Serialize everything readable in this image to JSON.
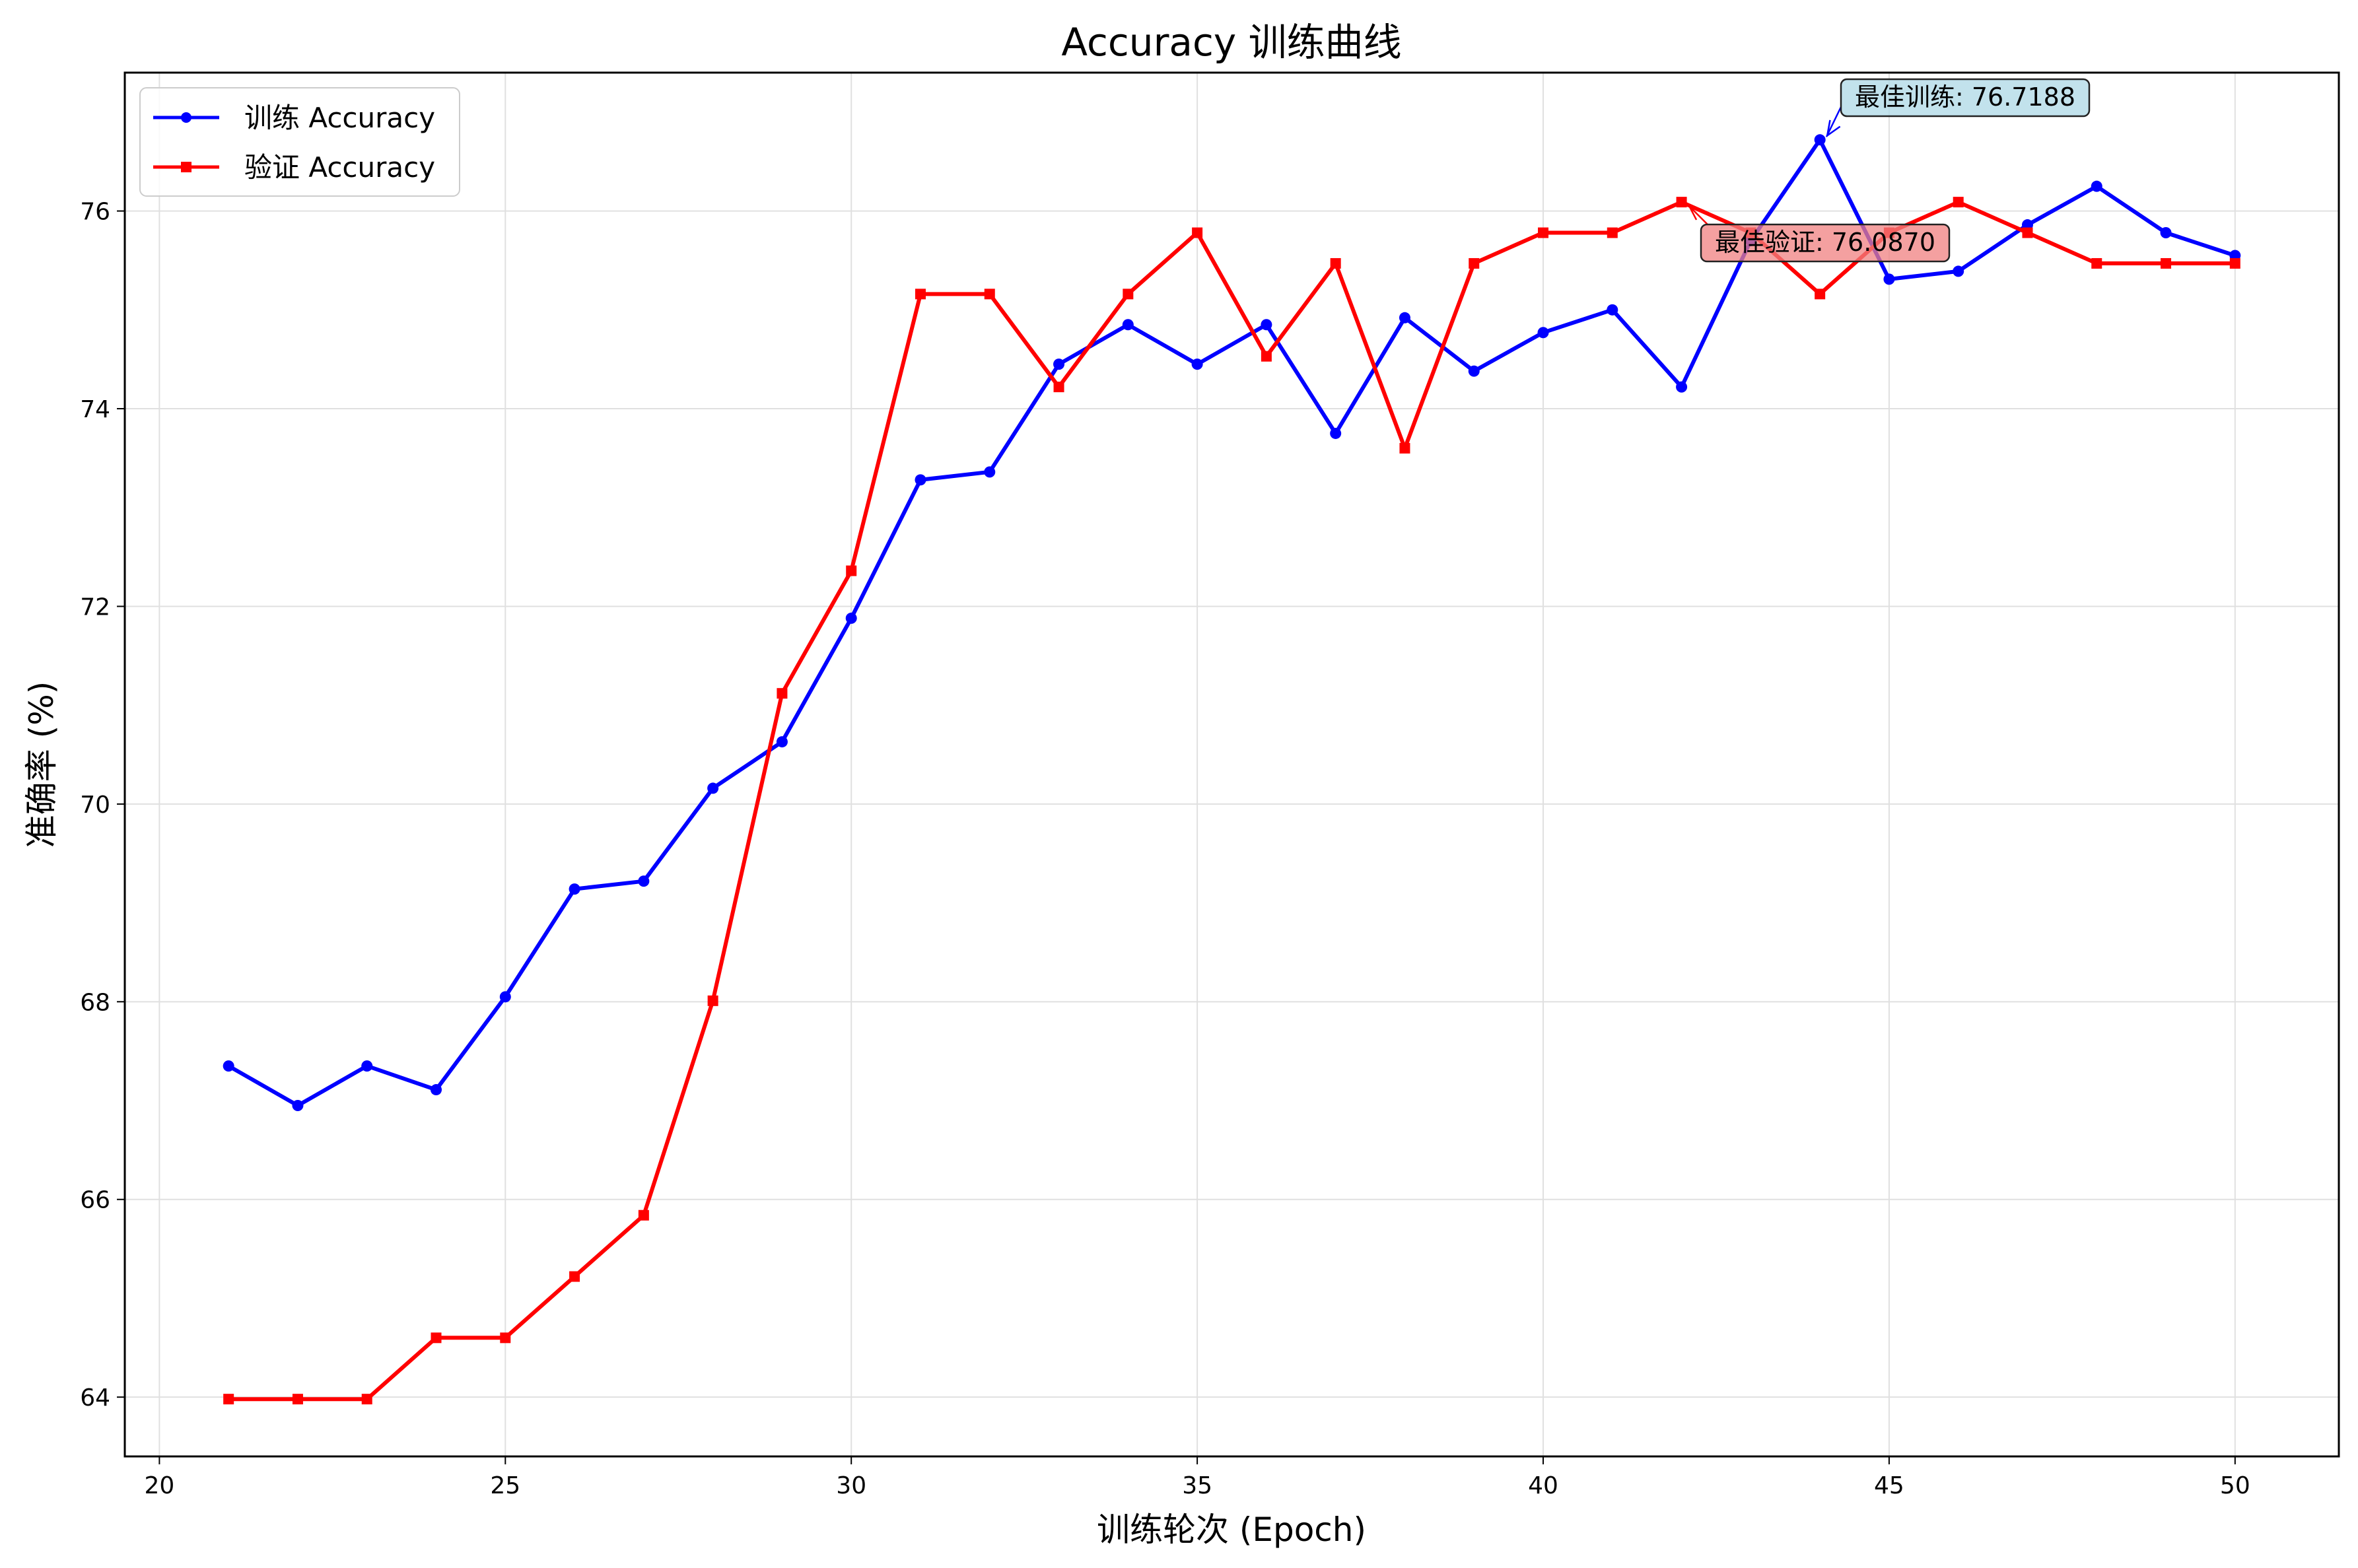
{
  "chart_data": {
    "type": "line",
    "title": "Accuracy 训练曲线",
    "xlabel": "训练轮次 (Epoch)",
    "ylabel": "准确率 (%)",
    "xlim": [
      19.5,
      51.5
    ],
    "ylim": [
      63.4,
      77.4
    ],
    "xticks": [
      20,
      25,
      30,
      35,
      40,
      45,
      50
    ],
    "yticks": [
      64,
      66,
      68,
      70,
      72,
      74,
      76
    ],
    "grid": true,
    "legend_position": "top-left",
    "x": [
      21,
      22,
      23,
      24,
      25,
      26,
      27,
      28,
      29,
      30,
      31,
      32,
      33,
      34,
      35,
      36,
      37,
      38,
      39,
      40,
      41,
      42,
      43,
      44,
      45,
      46,
      47,
      48,
      49,
      50
    ],
    "series": [
      {
        "name": "训练 Accuracy",
        "color": "#0000ff",
        "marker": "circle",
        "values": [
          67.35,
          66.95,
          67.35,
          67.11,
          68.05,
          69.14,
          69.22,
          70.16,
          70.63,
          71.88,
          73.28,
          73.36,
          74.45,
          74.85,
          74.45,
          74.85,
          73.75,
          74.92,
          74.38,
          74.77,
          75.0,
          74.22,
          75.7,
          76.72,
          75.31,
          75.39,
          75.86,
          76.25,
          75.78,
          75.55
        ]
      },
      {
        "name": "验证 Accuracy",
        "color": "#ff0000",
        "marker": "square",
        "values": [
          63.98,
          63.98,
          63.98,
          64.6,
          64.6,
          65.22,
          65.84,
          68.01,
          71.12,
          72.36,
          75.16,
          75.16,
          74.22,
          75.16,
          75.78,
          74.53,
          75.47,
          73.6,
          75.47,
          75.78,
          75.78,
          76.09,
          75.78,
          75.16,
          75.78,
          76.09,
          75.78,
          75.47,
          75.47,
          75.47
        ]
      }
    ],
    "annotations": [
      {
        "label": "最佳训练: 76.7188",
        "x": 44,
        "y": 76.7188,
        "series": 0,
        "color": "#add8e6"
      },
      {
        "label": "最佳验证: 76.0870",
        "x": 42,
        "y": 76.087,
        "series": 1,
        "color": "#f08080"
      }
    ]
  }
}
